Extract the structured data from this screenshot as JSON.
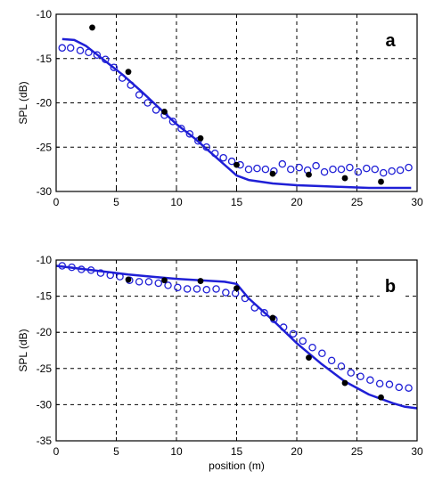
{
  "chart_data": [
    {
      "type": "line",
      "panel_label": "a",
      "xlabel": "",
      "ylabel": "SPL (dB)",
      "xlim": [
        0,
        30
      ],
      "ylim": [
        -30,
        -10
      ],
      "xticks": [
        "0",
        "5",
        "10",
        "15",
        "20",
        "25",
        "30"
      ],
      "yticks": [
        "-10",
        "-15",
        "-20",
        "-25",
        "-30"
      ],
      "grid": true,
      "series": [
        {
          "style": "line",
          "color": "#1f1fd6",
          "x": [
            0.5,
            1.5,
            2.5,
            4,
            5.5,
            7,
            8.5,
            10,
            11.5,
            13,
            14.5,
            15,
            16,
            18,
            20,
            22,
            24,
            26,
            28,
            29.5
          ],
          "y": [
            -12.8,
            -12.9,
            -13.6,
            -15.2,
            -16.8,
            -18.6,
            -20.5,
            -22.4,
            -24.0,
            -25.8,
            -27.6,
            -28.2,
            -28.7,
            -29.1,
            -29.3,
            -29.4,
            -29.5,
            -29.6,
            -29.6,
            -29.6
          ]
        },
        {
          "style": "open-circles",
          "color": "#1f1fd6",
          "x": [
            0.5,
            1.2,
            2.0,
            2.7,
            3.4,
            4.1,
            4.8,
            5.5,
            6.2,
            6.9,
            7.6,
            8.3,
            9.0,
            9.7,
            10.4,
            11.1,
            11.8,
            12.5,
            13.2,
            13.9,
            14.6,
            15.3,
            16.0,
            16.7,
            17.4,
            18.1,
            18.8,
            19.5,
            20.2,
            20.9,
            21.6,
            22.3,
            23.0,
            23.7,
            24.4,
            25.1,
            25.8,
            26.5,
            27.2,
            27.9,
            28.6,
            29.3
          ],
          "y": [
            -13.8,
            -13.8,
            -14.1,
            -14.3,
            -14.6,
            -15.1,
            -16.0,
            -17.2,
            -18.0,
            -19.1,
            -20.0,
            -20.8,
            -21.4,
            -22.1,
            -22.9,
            -23.5,
            -24.3,
            -25.0,
            -25.7,
            -26.2,
            -26.6,
            -27.0,
            -27.5,
            -27.4,
            -27.5,
            -27.7,
            -26.9,
            -27.5,
            -27.3,
            -27.6,
            -27.1,
            -27.8,
            -27.5,
            -27.5,
            -27.3,
            -27.8,
            -27.4,
            -27.5,
            -27.9,
            -27.7,
            -27.6,
            -27.3
          ]
        },
        {
          "style": "filled-dots",
          "color": "#000000",
          "x": [
            3,
            6,
            9,
            12,
            15,
            18,
            21,
            24,
            27
          ],
          "y": [
            -11.5,
            -16.5,
            -21.0,
            -24.0,
            -27.0,
            -28.0,
            -28.1,
            -28.5,
            -28.9
          ]
        }
      ]
    },
    {
      "type": "line",
      "panel_label": "b",
      "xlabel": "position (m)",
      "ylabel": "SPL (dB)",
      "xlim": [
        0,
        30
      ],
      "ylim": [
        -35,
        -10
      ],
      "xticks": [
        "0",
        "5",
        "10",
        "15",
        "20",
        "25",
        "30"
      ],
      "yticks": [
        "-10",
        "-15",
        "-20",
        "-25",
        "-30",
        "-35"
      ],
      "grid": true,
      "series": [
        {
          "style": "line",
          "color": "#1f1fd6",
          "x": [
            0,
            2,
            4,
            6,
            8,
            10,
            12,
            14,
            15,
            16,
            18,
            20,
            22,
            24,
            26,
            28,
            29,
            30
          ],
          "y": [
            -10.8,
            -11.2,
            -11.6,
            -12.0,
            -12.3,
            -12.6,
            -12.8,
            -13.0,
            -13.3,
            -15.3,
            -18.3,
            -21.5,
            -24.3,
            -26.8,
            -28.6,
            -29.8,
            -30.3,
            -30.5
          ]
        },
        {
          "style": "open-circles",
          "color": "#1f1fd6",
          "x": [
            0.5,
            1.3,
            2.1,
            2.9,
            3.7,
            4.5,
            5.3,
            6.1,
            6.9,
            7.7,
            8.5,
            9.3,
            10.1,
            10.9,
            11.7,
            12.5,
            13.3,
            14.1,
            14.9,
            15.7,
            16.5,
            17.3,
            18.1,
            18.9,
            19.7,
            20.5,
            21.3,
            22.1,
            22.9,
            23.7,
            24.5,
            25.3,
            26.1,
            26.9,
            27.7,
            28.5,
            29.3
          ],
          "y": [
            -10.8,
            -11.0,
            -11.3,
            -11.4,
            -11.8,
            -12.1,
            -12.3,
            -12.8,
            -13.0,
            -13.0,
            -13.2,
            -13.5,
            -13.8,
            -14.0,
            -14.0,
            -14.1,
            -14.0,
            -14.5,
            -14.6,
            -15.3,
            -16.6,
            -17.3,
            -18.2,
            -19.3,
            -20.2,
            -21.2,
            -22.1,
            -22.9,
            -23.9,
            -24.7,
            -25.6,
            -26.1,
            -26.6,
            -27.1,
            -27.2,
            -27.6,
            -27.7
          ]
        },
        {
          "style": "filled-dots",
          "color": "#000000",
          "x": [
            6,
            9,
            12,
            15,
            18,
            21,
            24,
            27
          ],
          "y": [
            -12.7,
            -12.8,
            -12.9,
            -13.9,
            -18.0,
            -23.5,
            -27.0,
            -29.0
          ]
        }
      ]
    }
  ]
}
